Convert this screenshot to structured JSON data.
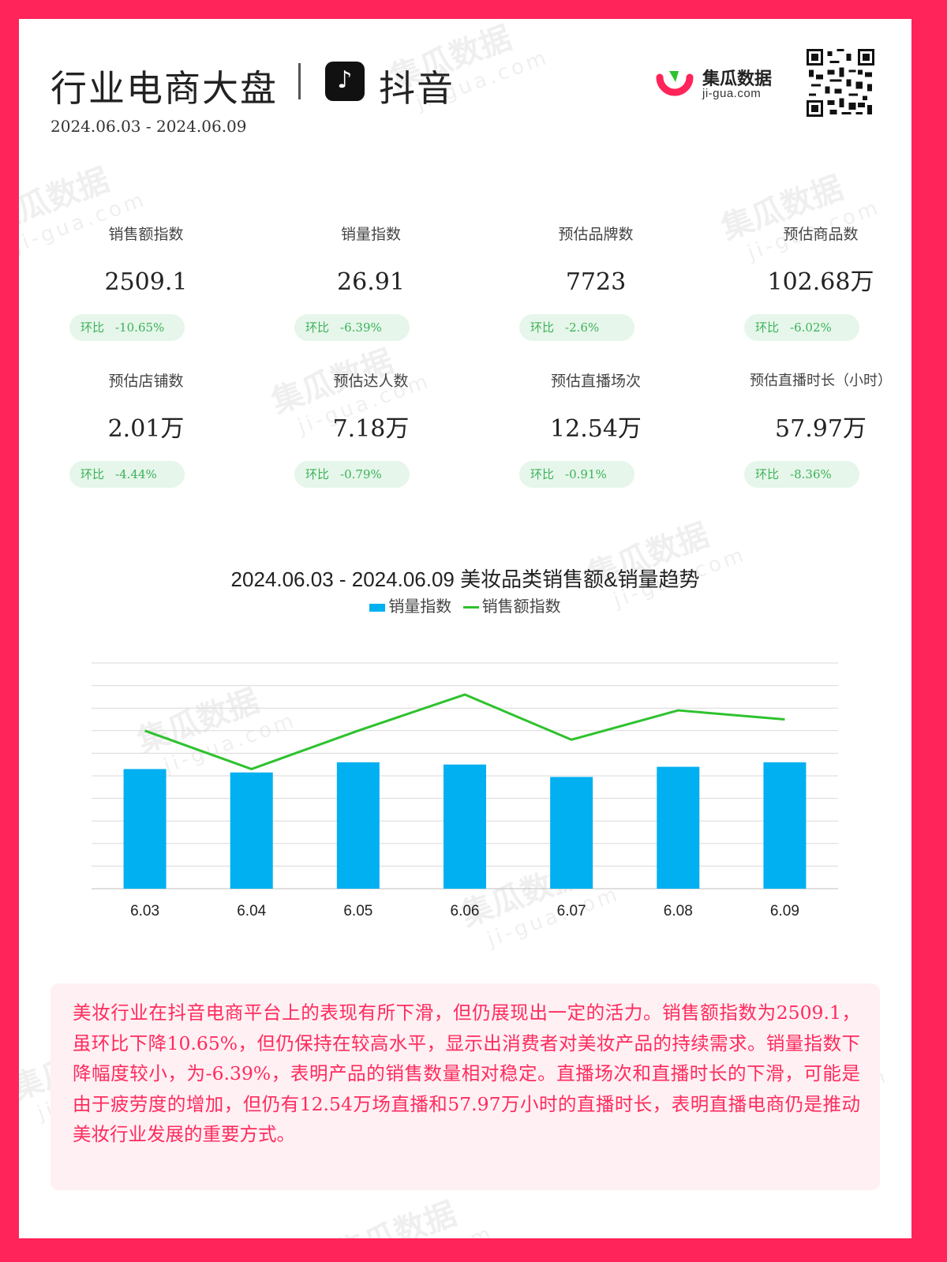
{
  "header": {
    "title": "行业电商大盘",
    "platform": "抖音",
    "platform_icon": "tiktok-icon",
    "date_range": "2024.06.03 - 2024.06.09",
    "brand_name": "集瓜数据",
    "brand_domain": "ji-gua.com",
    "brand_color": "#ff2459"
  },
  "metrics": [
    {
      "label": "销售额指数",
      "value": "2509.1",
      "change_label": "环比",
      "change": "-10.65%"
    },
    {
      "label": "销量指数",
      "value": "26.91",
      "change_label": "环比",
      "change": "-6.39%"
    },
    {
      "label": "预估品牌数",
      "value": "7723",
      "change_label": "环比",
      "change": "-2.6%"
    },
    {
      "label": "预估商品数",
      "value": "102.68万",
      "change_label": "环比",
      "change": "-6.02%"
    },
    {
      "label": "预估店铺数",
      "value": "2.01万",
      "change_label": "环比",
      "change": "-4.44%"
    },
    {
      "label": "预估达人数",
      "value": "7.18万",
      "change_label": "环比",
      "change": "-0.79%"
    },
    {
      "label": "预估直播场次",
      "value": "12.54万",
      "change_label": "环比",
      "change": "-0.91%"
    },
    {
      "label": "预估直播时长（小时）",
      "value": "57.97万",
      "change_label": "环比",
      "change": "-8.36%"
    }
  ],
  "chart_data": {
    "type": "bar",
    "title": "2024.06.03 - 2024.06.09 美妆品类销售额&销量趋势",
    "categories": [
      "6.03",
      "6.04",
      "6.05",
      "6.06",
      "6.07",
      "6.08",
      "6.09"
    ],
    "series": [
      {
        "name": "销量指数",
        "type": "bar",
        "color": "#00b0f0",
        "values": [
          5.3,
          5.15,
          5.6,
          5.5,
          4.95,
          5.4,
          5.6
        ]
      },
      {
        "name": "销售额指数",
        "type": "line",
        "color": "#2ec22e",
        "values": [
          7.0,
          5.3,
          7.0,
          8.6,
          6.6,
          7.9,
          7.5
        ]
      }
    ],
    "ylim": [
      0,
      10
    ],
    "grid": true,
    "legend": "top-center"
  },
  "summary": {
    "text": "美妆行业在抖音电商平台上的表现有所下滑，但仍展现出一定的活力。销售额指数为2509.1，虽环比下降10.65%，但仍保持在较高水平，显示出消费者对美妆产品的持续需求。销量指数下降幅度较小，为-6.39%，表明产品的销售数量相对稳定。直播场次和直播时长的下滑，可能是由于疲劳度的增加，但仍有12.54万场直播和57.97万小时的直播时长，表明直播电商仍是推动美妆行业发展的重要方式。"
  }
}
